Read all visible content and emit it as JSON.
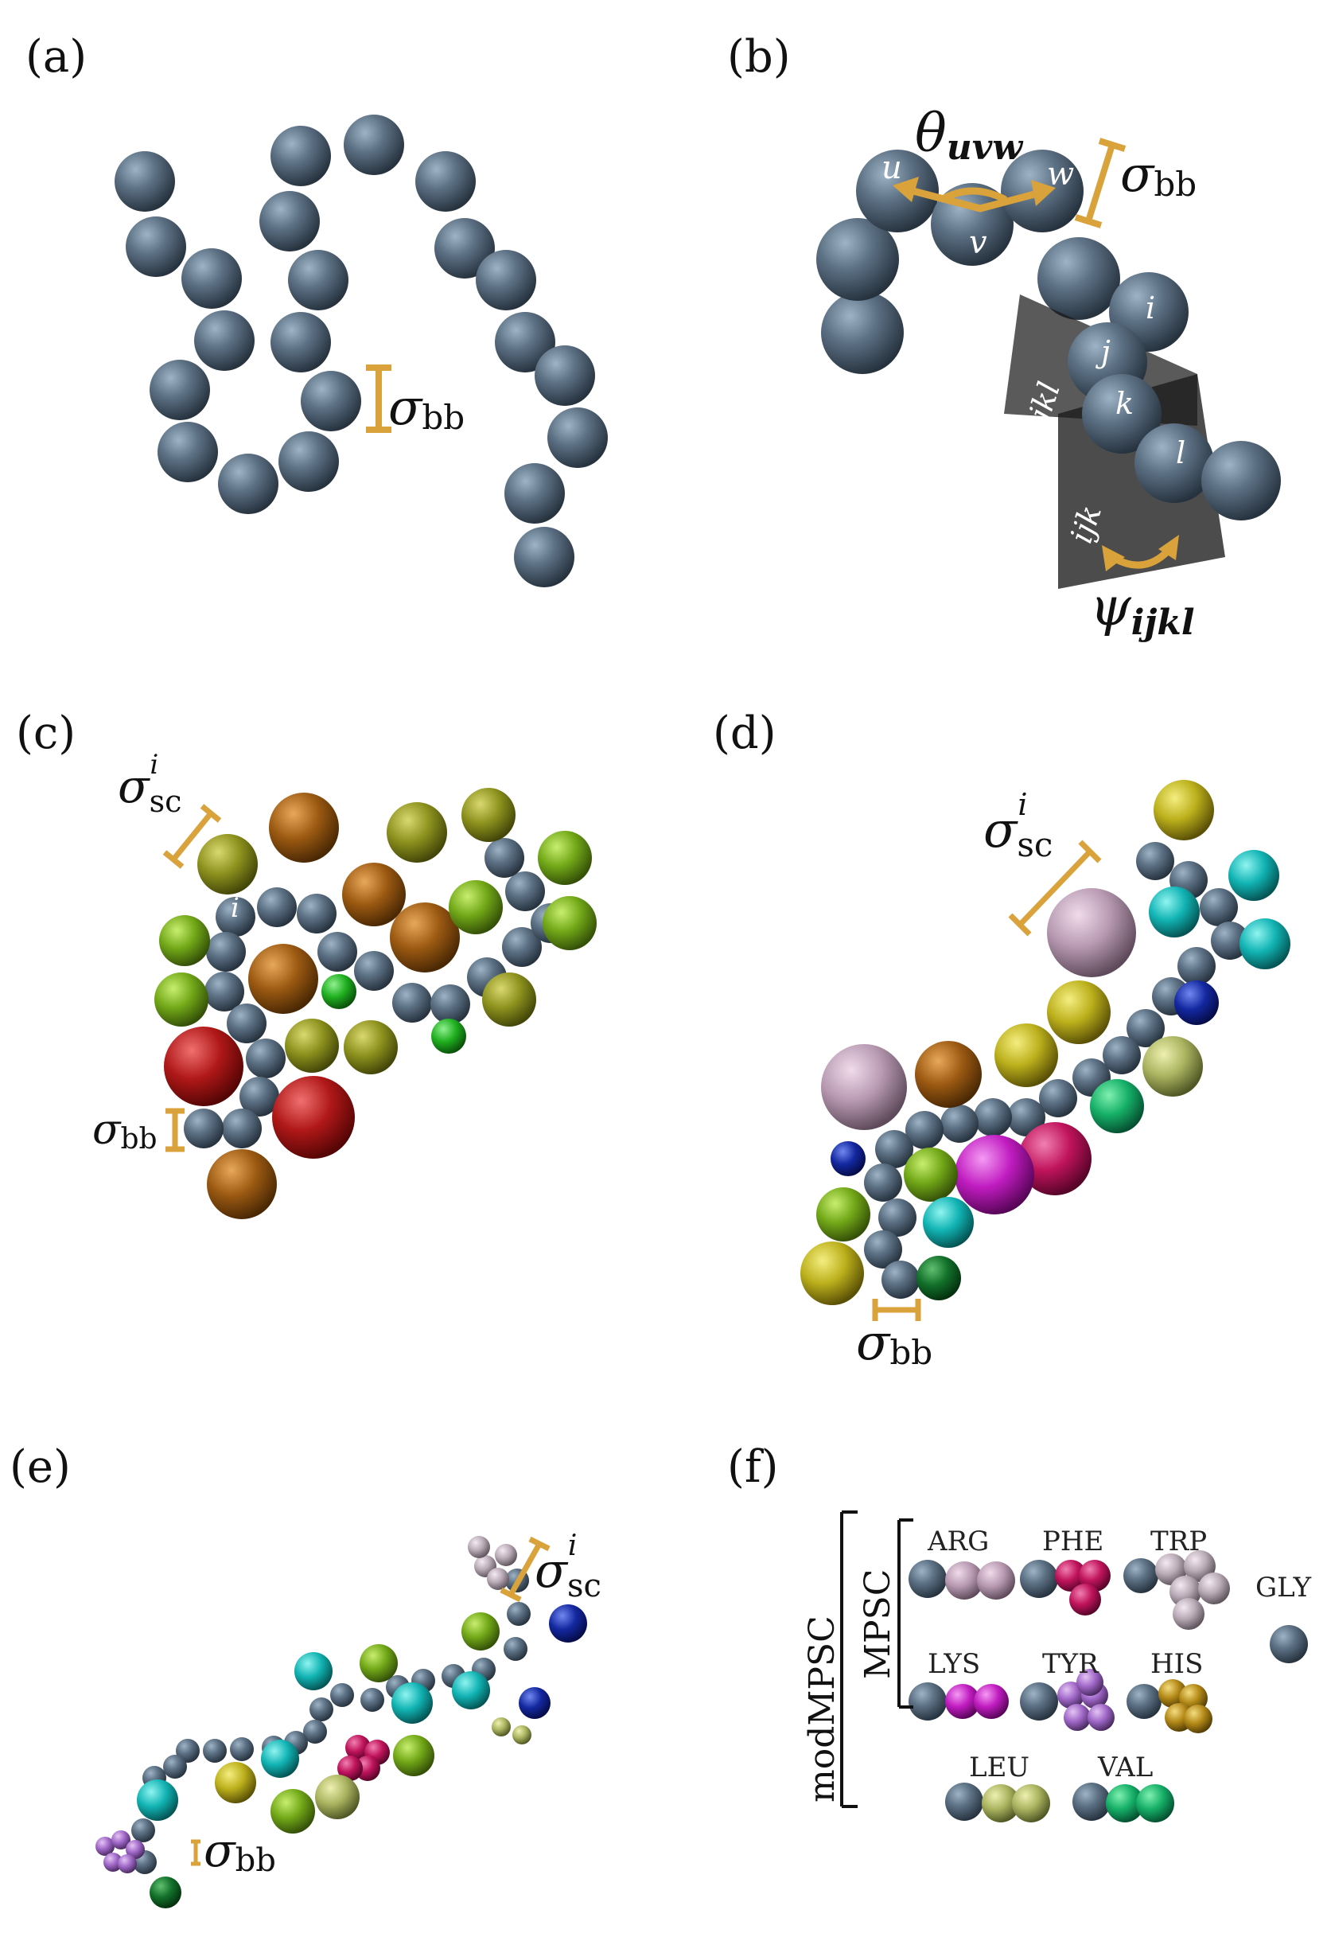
{
  "panels": {
    "a": "(a)",
    "b": "(b)",
    "c": "(c)",
    "d": "(d)",
    "e": "(e)",
    "f": "(f)"
  },
  "symbols": {
    "sigma": "σ",
    "bb": "bb",
    "sc": "sc",
    "i": "i",
    "theta": "θ",
    "uvw": "uvw",
    "psi": "ψ",
    "ijkl": "ijkl"
  },
  "bead_labels": {
    "u": "u",
    "v": "v",
    "w": "w",
    "i": "i",
    "j": "j",
    "k": "k",
    "l": "l"
  },
  "planes": {
    "jkl": "jkl",
    "ijk": "ijk"
  },
  "legend": {
    "outer": "modMPSC",
    "inner": "MPSC",
    "residues": {
      "arg": "ARG",
      "phe": "PHE",
      "trp": "TRP",
      "lys": "LYS",
      "tyr": "TYR",
      "his": "HIS",
      "gly": "GLY",
      "leu": "LEU",
      "val": "VAL"
    }
  },
  "colors": {
    "backbone": "#5a6d80",
    "scale_bar": "#d9a23a",
    "plane": "#1a1a1a"
  }
}
